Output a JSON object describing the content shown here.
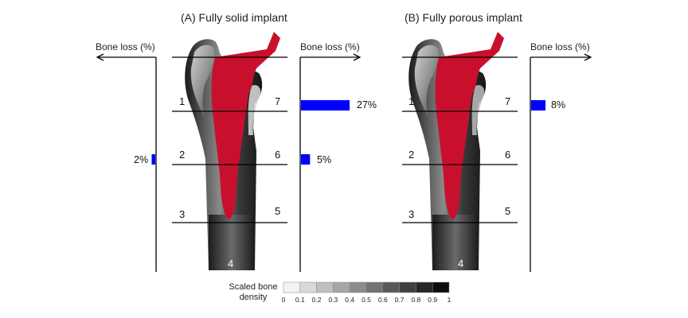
{
  "panels": [
    {
      "title": "(A) Fully solid implant",
      "left_axis_label": "Bone loss (%)",
      "right_axis_label": "Bone loss (%)",
      "zones_left": [
        "1",
        "2",
        "3"
      ],
      "zones_right": [
        "7",
        "6",
        "5"
      ],
      "zone_bottom": "4",
      "bars": [
        {
          "zone": "7",
          "value": 27,
          "label": "27%",
          "side": "right"
        },
        {
          "zone": "6",
          "value": 5,
          "label": "5%",
          "side": "right"
        },
        {
          "zone": "2",
          "value": 2,
          "label": "2%",
          "side": "left"
        }
      ]
    },
    {
      "title": "(B) Fully porous implant",
      "right_axis_label": "Bone loss (%)",
      "zones_left": [
        "1",
        "2",
        "3"
      ],
      "zones_right": [
        "7",
        "6",
        "5"
      ],
      "zone_bottom": "4",
      "bars": [
        {
          "zone": "7",
          "value": 8,
          "label": "8%",
          "side": "right"
        }
      ]
    }
  ],
  "legend": {
    "title_line1": "Scaled bone",
    "title_line2": "density",
    "ticks": [
      "0",
      "0.1",
      "0.2",
      "0.3",
      "0.4",
      "0.5",
      "0.6",
      "0.7",
      "0.8",
      "0.9",
      "1"
    ]
  },
  "colors": {
    "implant": "#C8102E",
    "bar": "#0000FF",
    "axis": "#000000"
  }
}
